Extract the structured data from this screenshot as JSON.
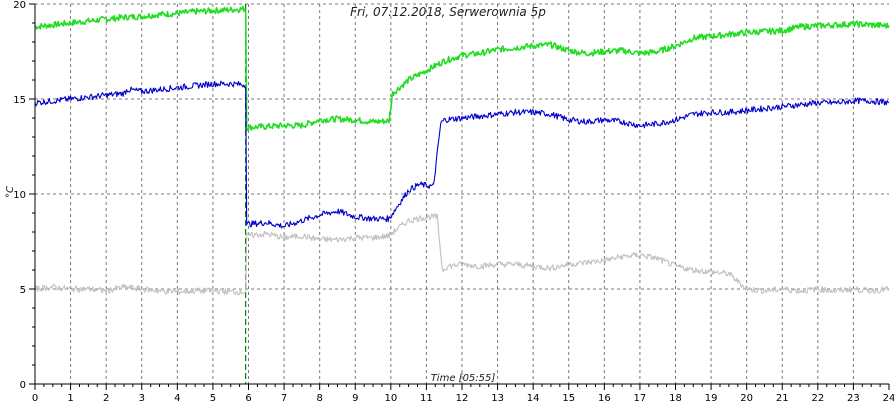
{
  "chart_data": {
    "type": "line",
    "title": "Fri, 07.12.2018, Serwerownia 5p",
    "xlabel": "Time [05:55]",
    "ylabel": "°C",
    "xlim": [
      0,
      24
    ],
    "ylim": [
      0,
      20
    ],
    "x_ticks": [
      0,
      1,
      2,
      3,
      4,
      5,
      6,
      7,
      8,
      9,
      10,
      11,
      12,
      13,
      14,
      15,
      16,
      17,
      18,
      19,
      20,
      21,
      22,
      23,
      24
    ],
    "y_ticks": [
      0,
      5,
      10,
      15,
      20
    ],
    "grid": true,
    "legend": "none",
    "marker": {
      "x": 5.92,
      "color": "#008000",
      "style": "dashed"
    },
    "colors": {
      "background": "#ffffff",
      "grid": "#7a7a7a",
      "axis": "#000000"
    },
    "series": [
      {
        "color": "#22dd22",
        "x": [
          0,
          0.5,
          1,
          1.5,
          2,
          2.5,
          3,
          3.5,
          4,
          4.5,
          5,
          5.5,
          5.92,
          5.95,
          6.5,
          7,
          7.5,
          8,
          8.5,
          9,
          9.5,
          9.95,
          10.05,
          10.5,
          11,
          11.5,
          12,
          12.5,
          13,
          13.5,
          14,
          14.5,
          15,
          15.5,
          16,
          16.5,
          17,
          17.5,
          18,
          18.5,
          19,
          19.5,
          20,
          20.5,
          21,
          21.5,
          22,
          22.5,
          23,
          23.5,
          24
        ],
        "values": [
          18.8,
          18.9,
          19.0,
          19.1,
          19.2,
          19.3,
          19.35,
          19.45,
          19.5,
          19.6,
          19.65,
          19.7,
          19.75,
          13.5,
          13.55,
          13.6,
          13.6,
          13.9,
          13.95,
          13.9,
          13.8,
          13.85,
          15.3,
          16.0,
          16.5,
          17.0,
          17.3,
          17.4,
          17.6,
          17.7,
          17.8,
          17.85,
          17.55,
          17.4,
          17.5,
          17.55,
          17.4,
          17.5,
          17.8,
          18.2,
          18.3,
          18.4,
          18.5,
          18.55,
          18.6,
          18.8,
          18.85,
          18.9,
          18.95,
          18.9,
          18.85
        ]
      },
      {
        "color": "#0000cc",
        "x": [
          0,
          0.5,
          1,
          1.5,
          2,
          2.5,
          2.6,
          3,
          3.5,
          4,
          4.5,
          5,
          5.5,
          5.92,
          5.95,
          6.5,
          7,
          7.5,
          8,
          8.5,
          9,
          9.5,
          9.95,
          10.2,
          10.5,
          10.8,
          11.2,
          11.4,
          11.5,
          12,
          12.5,
          13,
          13.5,
          14,
          14.5,
          15,
          15.5,
          16,
          16.5,
          17,
          17.5,
          18,
          18.5,
          19,
          19.5,
          20,
          20.5,
          21,
          21.5,
          22,
          22.5,
          23,
          23.5,
          24
        ],
        "values": [
          14.8,
          14.9,
          15.0,
          15.1,
          15.2,
          15.3,
          15.5,
          15.4,
          15.5,
          15.6,
          15.7,
          15.8,
          15.8,
          15.75,
          8.4,
          8.5,
          8.3,
          8.6,
          8.9,
          9.1,
          8.8,
          8.7,
          8.7,
          9.4,
          10.2,
          10.5,
          10.4,
          13.7,
          13.9,
          14.0,
          14.1,
          14.2,
          14.3,
          14.3,
          14.2,
          13.9,
          13.8,
          13.9,
          13.8,
          13.6,
          13.7,
          13.9,
          14.2,
          14.3,
          14.3,
          14.4,
          14.5,
          14.6,
          14.7,
          14.8,
          14.8,
          14.9,
          14.9,
          14.8
        ]
      },
      {
        "color": "#c0c0c0",
        "x": [
          0,
          0.5,
          1,
          1.5,
          2,
          2.5,
          3,
          3.5,
          4,
          4.5,
          5,
          5.5,
          5.92,
          5.95,
          6.5,
          7,
          7.5,
          8,
          8.5,
          9,
          9.5,
          9.95,
          10.2,
          10.5,
          11,
          11.3,
          11.45,
          11.6,
          12,
          12.5,
          13,
          13.5,
          14,
          14.5,
          15,
          15.5,
          16,
          16.5,
          17,
          17.5,
          18,
          18.5,
          19,
          19.5,
          20,
          20.5,
          21,
          21.5,
          22,
          22.5,
          23,
          23.5,
          24
        ],
        "values": [
          5.0,
          5.1,
          5.0,
          5.0,
          4.9,
          5.1,
          5.0,
          4.9,
          4.85,
          4.9,
          4.9,
          4.85,
          4.85,
          7.8,
          7.9,
          7.7,
          7.8,
          7.6,
          7.6,
          7.7,
          7.7,
          7.8,
          8.2,
          8.6,
          8.8,
          8.8,
          6.0,
          6.2,
          6.3,
          6.2,
          6.3,
          6.3,
          6.2,
          6.1,
          6.3,
          6.4,
          6.5,
          6.7,
          6.8,
          6.6,
          6.2,
          6.0,
          5.9,
          5.8,
          5.0,
          4.9,
          5.0,
          4.9,
          5.0,
          4.9,
          5.0,
          4.9,
          5.0
        ]
      }
    ]
  }
}
